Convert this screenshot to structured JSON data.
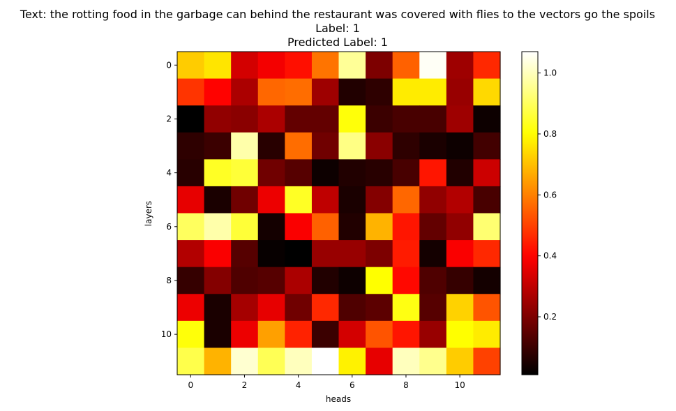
{
  "chart_data": {
    "type": "heatmap",
    "title_lines": [
      "Text: the rotting food in the garbage can behind the restaurant was covered with flies to the vectors go the spoils",
      "Label: 1",
      "Predicted Label: 1"
    ],
    "xlabel": "heads",
    "ylabel": "layers",
    "x_ticks": [
      0,
      2,
      4,
      6,
      8,
      10
    ],
    "y_ticks": [
      0,
      2,
      4,
      6,
      8,
      10
    ],
    "colormap": "hot",
    "colorbar_range": [
      0.01,
      1.07
    ],
    "colorbar_ticks": [
      0.2,
      0.4,
      0.6,
      0.8,
      1.0
    ],
    "colorbar_tick_labels": [
      "0.2",
      "0.4",
      "0.6",
      "0.8",
      "1.0"
    ],
    "values": [
      [
        0.72,
        0.76,
        0.33,
        0.38,
        0.42,
        0.58,
        0.96,
        0.2,
        0.55,
        1.06,
        0.25,
        0.46
      ],
      [
        0.48,
        0.4,
        0.27,
        0.56,
        0.57,
        0.25,
        0.06,
        0.08,
        0.77,
        0.77,
        0.24,
        0.74
      ],
      [
        0.01,
        0.23,
        0.22,
        0.27,
        0.16,
        0.16,
        0.81,
        0.1,
        0.12,
        0.12,
        0.25,
        0.03
      ],
      [
        0.08,
        0.1,
        0.98,
        0.07,
        0.57,
        0.18,
        0.94,
        0.22,
        0.08,
        0.05,
        0.03,
        0.11
      ],
      [
        0.07,
        0.84,
        0.86,
        0.18,
        0.14,
        0.03,
        0.06,
        0.07,
        0.12,
        0.43,
        0.06,
        0.32
      ],
      [
        0.36,
        0.05,
        0.18,
        0.37,
        0.84,
        0.3,
        0.05,
        0.21,
        0.56,
        0.23,
        0.28,
        0.12
      ],
      [
        0.9,
        0.98,
        0.86,
        0.04,
        0.39,
        0.55,
        0.06,
        0.68,
        0.43,
        0.16,
        0.23,
        0.92
      ],
      [
        0.28,
        0.39,
        0.14,
        0.02,
        0.01,
        0.24,
        0.24,
        0.2,
        0.44,
        0.04,
        0.39,
        0.46
      ],
      [
        0.09,
        0.21,
        0.13,
        0.14,
        0.27,
        0.06,
        0.03,
        0.8,
        0.41,
        0.13,
        0.09,
        0.04
      ],
      [
        0.37,
        0.05,
        0.26,
        0.36,
        0.18,
        0.46,
        0.13,
        0.15,
        0.82,
        0.14,
        0.73,
        0.53
      ],
      [
        0.81,
        0.05,
        0.37,
        0.65,
        0.45,
        0.1,
        0.33,
        0.53,
        0.43,
        0.24,
        0.8,
        0.77
      ],
      [
        0.88,
        0.68,
        1.02,
        0.89,
        1.0,
        1.07,
        0.78,
        0.36,
        1.0,
        0.95,
        0.72,
        0.5
      ]
    ]
  }
}
